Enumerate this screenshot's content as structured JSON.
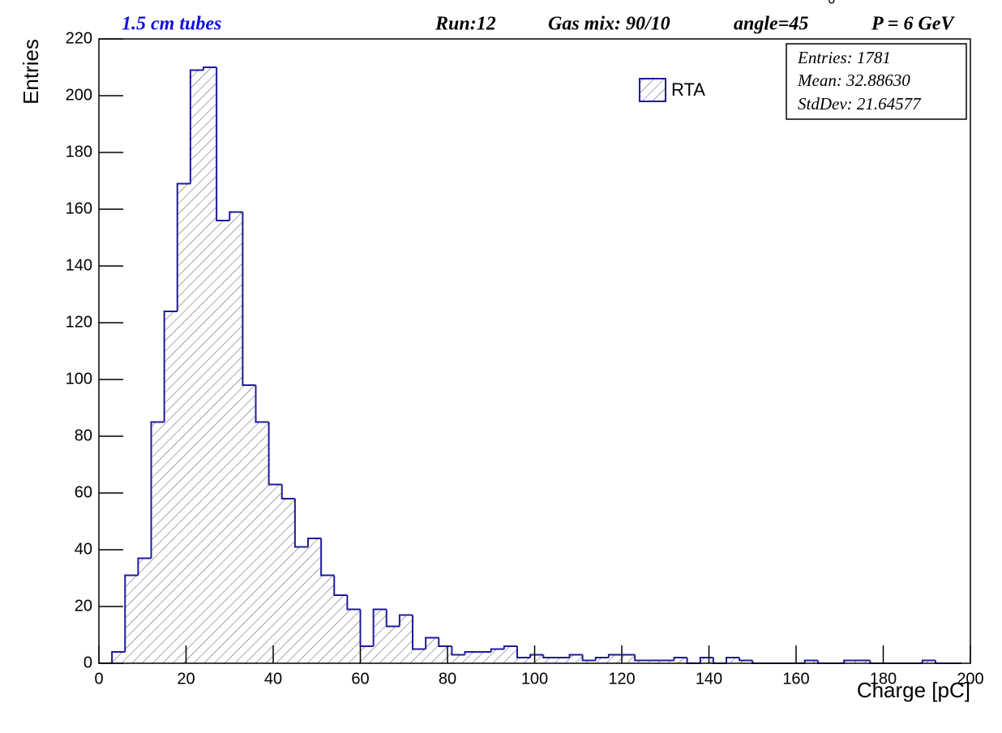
{
  "chart_data": {
    "type": "histogram",
    "title": "1.5 cm tubes",
    "annotations": [
      "Run:12",
      "Gas mix: 90/10",
      "angle=45",
      "°",
      "P = 6 GeV"
    ],
    "stats": [
      "Entries: 1781",
      "Mean: 32.88630",
      "StdDev: 21.64577"
    ],
    "x_label": "Charge [pC]",
    "y_label": "Entries",
    "bins": [
      0,
      3,
      6,
      9,
      12,
      15,
      18,
      21,
      24,
      27,
      30,
      33,
      36,
      39,
      42,
      45,
      48,
      51,
      54,
      57,
      60,
      63,
      66,
      69,
      72,
      75,
      78,
      81,
      84,
      87,
      90,
      93,
      96,
      99,
      102,
      105,
      108,
      111,
      114,
      117,
      120,
      123,
      126,
      129,
      132,
      135,
      138,
      141,
      144,
      147,
      150,
      153,
      156,
      159,
      162,
      165,
      168,
      171,
      174,
      177,
      180,
      183,
      186,
      189,
      192,
      195,
      198
    ],
    "series": [
      {
        "name": "RTA",
        "color": "#1c1c9c",
        "values": [
          0,
          4,
          31,
          37,
          85,
          124,
          169,
          209,
          210,
          156,
          159,
          98,
          85,
          63,
          58,
          41,
          44,
          31,
          24,
          19,
          6,
          19,
          13,
          17,
          5,
          9,
          6,
          3,
          4,
          4,
          5,
          6,
          2,
          3,
          2,
          2,
          3,
          1,
          2,
          3,
          3,
          1,
          1,
          1,
          2,
          0,
          2,
          0,
          2,
          1,
          0,
          0,
          0,
          0,
          1,
          0,
          0,
          1,
          1,
          0,
          0,
          0,
          0,
          1,
          0,
          0
        ]
      }
    ],
    "xlim": [
      0,
      200
    ],
    "xticks": [
      0,
      20,
      40,
      60,
      80,
      100,
      120,
      140,
      160,
      180,
      200
    ],
    "ylim": [
      0,
      220
    ],
    "yticks": [
      0,
      20,
      40,
      60,
      80,
      100,
      120,
      140,
      160,
      180,
      200,
      220
    ]
  }
}
